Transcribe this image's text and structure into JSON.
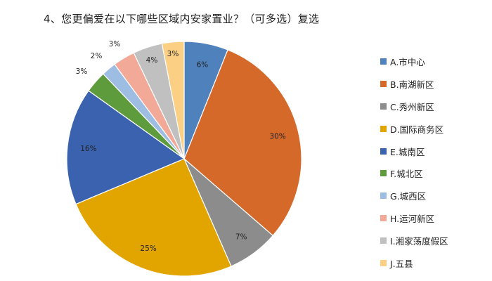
{
  "chart_data": {
    "type": "pie",
    "title": "4、您更偏爱在以下哪些区域内安家置业？（可多选）复选",
    "legend_position": "right",
    "slices": [
      {
        "name": "A.市中心",
        "value": 6,
        "label": "6%",
        "color": "#4F81BD"
      },
      {
        "name": "B.南湖新区",
        "value": 30,
        "label": "30%",
        "color": "#D4692A"
      },
      {
        "name": "C.秀州新区",
        "value": 7,
        "label": "7%",
        "color": "#8C8C8C"
      },
      {
        "name": "D.国际商务区",
        "value": 25,
        "label": "25%",
        "color": "#E2A500"
      },
      {
        "name": "E.城南区",
        "value": 16,
        "label": "16%",
        "color": "#3A62AE"
      },
      {
        "name": "F.城北区",
        "value": 3,
        "label": "3%",
        "color": "#5E9B3C"
      },
      {
        "name": "G.城西区",
        "value": 2,
        "label": "2%",
        "color": "#9EBDE3"
      },
      {
        "name": "H.运河新区",
        "value": 3,
        "label": "3%",
        "color": "#F2A998"
      },
      {
        "name": "I.湘家荡度假区",
        "value": 4,
        "label": "4%",
        "color": "#C0C0C0"
      },
      {
        "name": "J.五县",
        "value": 3,
        "label": "3%",
        "color": "#FBCF84"
      }
    ]
  }
}
